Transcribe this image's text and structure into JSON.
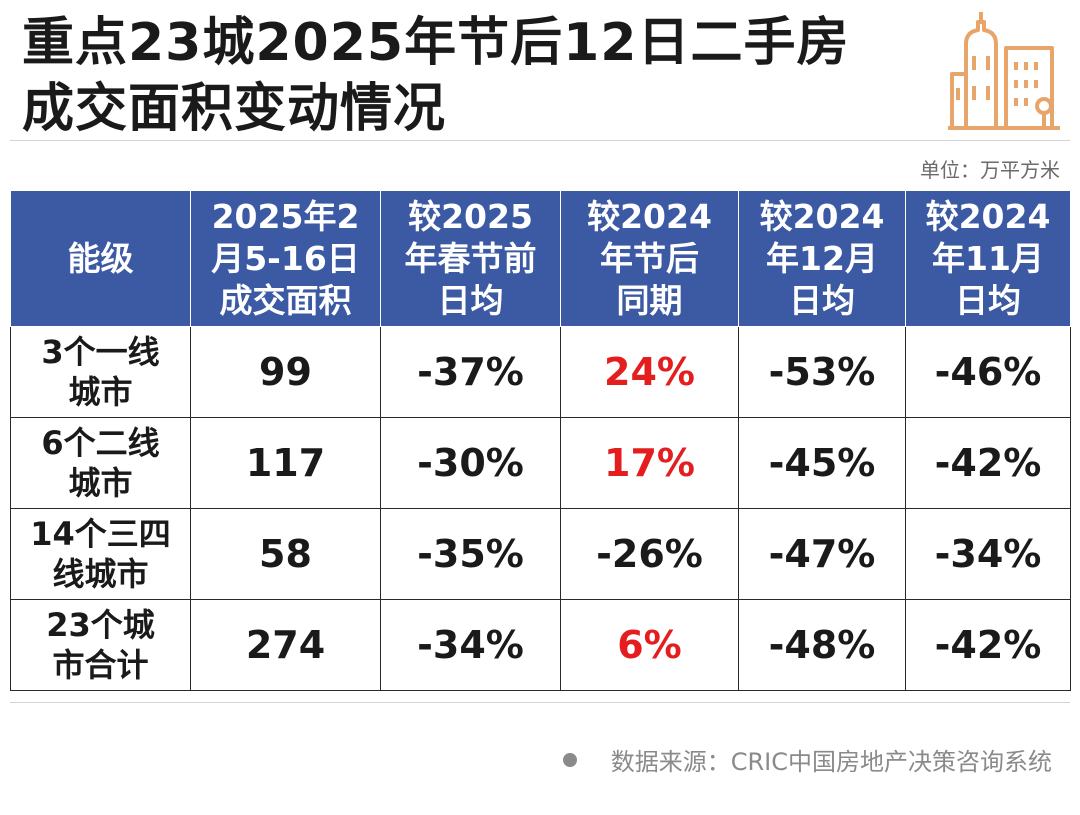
{
  "title": {
    "line1": "重点23城2025年节后12日二手房",
    "line2": "成交面积变动情况"
  },
  "unit": "单位：万平方米",
  "table": {
    "headers": [
      [
        "能级"
      ],
      [
        "2025年2",
        "月5-16日",
        "成交面积"
      ],
      [
        "较2025",
        "年春节前",
        "日均"
      ],
      [
        "较2024",
        "年节后",
        "同期"
      ],
      [
        "较2024",
        "年12月",
        "日均"
      ],
      [
        "较2024",
        "年11月",
        "日均"
      ]
    ],
    "rows": [
      {
        "label": [
          "3个一线",
          "城市"
        ],
        "area": "99",
        "vs_pre_festival": "-37%",
        "vs_2024_post_festival": "24%",
        "vs_2024_dec": "-53%",
        "vs_2024_nov": "-46%"
      },
      {
        "label": [
          "6个二线",
          "城市"
        ],
        "area": "117",
        "vs_pre_festival": "-30%",
        "vs_2024_post_festival": "17%",
        "vs_2024_dec": "-45%",
        "vs_2024_nov": "-42%"
      },
      {
        "label": [
          "14个三四",
          "线城市"
        ],
        "area": "58",
        "vs_pre_festival": "-35%",
        "vs_2024_post_festival": "-26%",
        "vs_2024_dec": "-47%",
        "vs_2024_nov": "-34%"
      },
      {
        "label": [
          "23个城",
          "市合计"
        ],
        "area": "274",
        "vs_pre_festival": "-34%",
        "vs_2024_post_festival": "6%",
        "vs_2024_dec": "-48%",
        "vs_2024_nov": "-42%"
      }
    ]
  },
  "source": "数据来源：CRIC中国房地产决策咨询系统",
  "colors": {
    "header_bg": "#3c5aa4",
    "positive": "#e41e1e",
    "logo": "#e8a56b"
  },
  "icons": {
    "logo": "city-buildings-icon",
    "bullet": "bullet-dot-icon"
  }
}
